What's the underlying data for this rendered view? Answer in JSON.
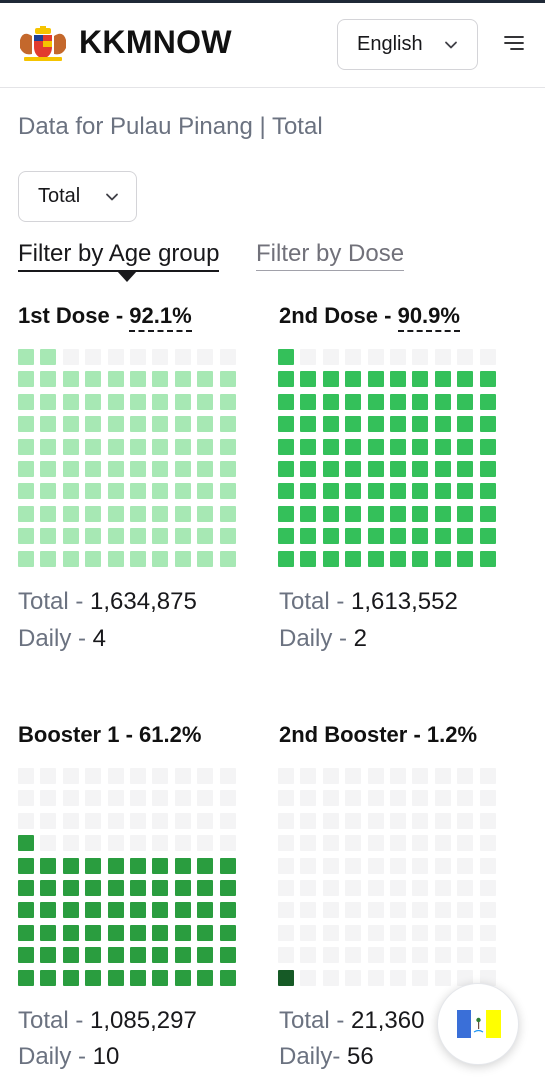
{
  "header": {
    "brand": "KKMNOW",
    "logo_icon": "malaysia-coat-of-arms",
    "language": "English",
    "menu_icon": "menu-icon"
  },
  "subtitle": "Data for Pulau Pinang | Total",
  "filter_select": {
    "value": "Total"
  },
  "tabs": [
    {
      "label": "Filter by Age group",
      "active": true
    },
    {
      "label": "Filter by Dose",
      "active": false
    }
  ],
  "cards": [
    {
      "title": "1st Dose - ",
      "percent_label": "92.1%",
      "percent": 92.1,
      "color": "#a7e8b4",
      "total_label": "Total - ",
      "total": "1,634,875",
      "daily_label": "Daily - ",
      "daily": "4"
    },
    {
      "title": "2nd Dose - ",
      "percent_label": "90.9%",
      "percent": 90.9,
      "color": "#34c05a",
      "total_label": "Total - ",
      "total": "1,613,552",
      "daily_label": "Daily - ",
      "daily": "2"
    },
    {
      "title": "Booster 1 - ",
      "percent_label": "61.2%",
      "percent": 61.2,
      "color": "#2a9d3f",
      "total_label": "Total - ",
      "total": "1,085,297",
      "daily_label": "Daily - ",
      "daily": "10"
    },
    {
      "title": "2nd Booster - ",
      "percent_label": "1.2%",
      "percent": 1.2,
      "color": "#165a26",
      "total_label": "Total - ",
      "total": "21,360",
      "daily_label": "Daily- ",
      "daily": "56"
    }
  ],
  "empty_cell_color": "#f4f4f5",
  "state_flag_icon": "penang-flag-icon"
}
